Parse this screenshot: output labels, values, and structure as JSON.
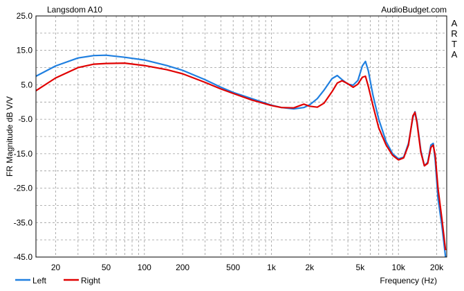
{
  "chart_data": {
    "type": "line",
    "title": "Langsdom A10",
    "source": "AudioBudget.com",
    "side_label": "ARTA",
    "xlabel": "Frequency (Hz)",
    "ylabel": "FR Magnitude dB V/V",
    "xscale": "log",
    "xlim": [
      14,
      24000
    ],
    "ylim": [
      -45,
      25
    ],
    "grid": true,
    "legend_placement": "bottom-left",
    "x_tick_labels": [
      {
        "value": 20,
        "label": "20"
      },
      {
        "value": 50,
        "label": "50"
      },
      {
        "value": 100,
        "label": "100"
      },
      {
        "value": 200,
        "label": "200"
      },
      {
        "value": 500,
        "label": "500"
      },
      {
        "value": 1000,
        "label": "1k"
      },
      {
        "value": 2000,
        "label": "2k"
      },
      {
        "value": 5000,
        "label": "5k"
      },
      {
        "value": 10000,
        "label": "10k"
      },
      {
        "value": 20000,
        "label": "20k"
      }
    ],
    "y_tick_labels": [
      {
        "value": 25,
        "label": "25.0"
      },
      {
        "value": 15,
        "label": "15.0"
      },
      {
        "value": 5,
        "label": "5.0"
      },
      {
        "value": -5,
        "label": "-5.0"
      },
      {
        "value": -15,
        "label": "-15.0"
      },
      {
        "value": -25,
        "label": "-25.0"
      },
      {
        "value": -35,
        "label": "-35.0"
      },
      {
        "value": -45,
        "label": "-45.0"
      }
    ],
    "series": [
      {
        "name": "Left",
        "color": "#1f7fe0",
        "points": [
          [
            14,
            7.5
          ],
          [
            20,
            10.5
          ],
          [
            30,
            12.8
          ],
          [
            40,
            13.5
          ],
          [
            50,
            13.6
          ],
          [
            70,
            13.0
          ],
          [
            100,
            12.2
          ],
          [
            150,
            10.6
          ],
          [
            200,
            9.2
          ],
          [
            300,
            6.5
          ],
          [
            400,
            4.3
          ],
          [
            500,
            2.8
          ],
          [
            700,
            1.0
          ],
          [
            1000,
            -0.9
          ],
          [
            1200,
            -1.6
          ],
          [
            1500,
            -2.0
          ],
          [
            1800,
            -1.6
          ],
          [
            2000,
            -0.8
          ],
          [
            2300,
            1.0
          ],
          [
            2600,
            3.5
          ],
          [
            3000,
            6.8
          ],
          [
            3300,
            7.7
          ],
          [
            3600,
            6.5
          ],
          [
            4000,
            5.2
          ],
          [
            4400,
            4.9
          ],
          [
            4800,
            6.3
          ],
          [
            5200,
            10.5
          ],
          [
            5500,
            11.8
          ],
          [
            5800,
            9.0
          ],
          [
            6300,
            2.0
          ],
          [
            7000,
            -5.0
          ],
          [
            8000,
            -11.5
          ],
          [
            9000,
            -15.0
          ],
          [
            10000,
            -16.5
          ],
          [
            11000,
            -16.0
          ],
          [
            12000,
            -12.0
          ],
          [
            13000,
            -4.5
          ],
          [
            13500,
            -2.8
          ],
          [
            14000,
            -5.5
          ],
          [
            15000,
            -14.0
          ],
          [
            16000,
            -18.5
          ],
          [
            17000,
            -17.5
          ],
          [
            18000,
            -12.5
          ],
          [
            18800,
            -12.0
          ],
          [
            19500,
            -17.0
          ],
          [
            20500,
            -28.0
          ],
          [
            22000,
            -36.0
          ],
          [
            23500,
            -45.0
          ]
        ]
      },
      {
        "name": "Right",
        "color": "#e00000",
        "points": [
          [
            14,
            3.3
          ],
          [
            20,
            7.0
          ],
          [
            30,
            10.0
          ],
          [
            40,
            11.0
          ],
          [
            50,
            11.2
          ],
          [
            70,
            11.3
          ],
          [
            100,
            10.6
          ],
          [
            150,
            9.4
          ],
          [
            200,
            8.2
          ],
          [
            300,
            5.7
          ],
          [
            400,
            3.8
          ],
          [
            500,
            2.5
          ],
          [
            700,
            0.6
          ],
          [
            1000,
            -1.0
          ],
          [
            1200,
            -1.6
          ],
          [
            1500,
            -1.7
          ],
          [
            1800,
            -0.6
          ],
          [
            2000,
            -1.2
          ],
          [
            2300,
            -1.5
          ],
          [
            2600,
            -0.3
          ],
          [
            3000,
            3.0
          ],
          [
            3300,
            5.5
          ],
          [
            3600,
            6.2
          ],
          [
            4000,
            5.3
          ],
          [
            4400,
            4.3
          ],
          [
            4800,
            5.2
          ],
          [
            5200,
            7.2
          ],
          [
            5500,
            7.5
          ],
          [
            5800,
            4.5
          ],
          [
            6300,
            -1.0
          ],
          [
            7000,
            -7.5
          ],
          [
            8000,
            -12.5
          ],
          [
            9000,
            -15.5
          ],
          [
            10000,
            -16.8
          ],
          [
            11000,
            -16.2
          ],
          [
            12000,
            -12.5
          ],
          [
            13000,
            -4.0
          ],
          [
            13500,
            -3.0
          ],
          [
            14000,
            -6.0
          ],
          [
            15000,
            -14.5
          ],
          [
            16000,
            -18.5
          ],
          [
            17000,
            -17.8
          ],
          [
            18000,
            -13.2
          ],
          [
            18800,
            -12.5
          ],
          [
            19500,
            -15.5
          ],
          [
            20500,
            -25.0
          ],
          [
            22000,
            -34.0
          ],
          [
            23500,
            -43.0
          ]
        ]
      }
    ]
  }
}
